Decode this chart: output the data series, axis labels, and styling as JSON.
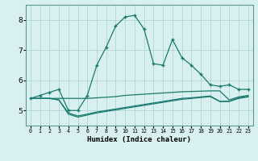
{
  "xlabel": "Humidex (Indice chaleur)",
  "x_values": [
    0,
    1,
    2,
    3,
    4,
    5,
    6,
    7,
    8,
    9,
    10,
    11,
    12,
    13,
    14,
    15,
    16,
    17,
    18,
    19,
    20,
    21,
    22,
    23
  ],
  "line1": [
    5.4,
    5.5,
    5.6,
    5.7,
    5.0,
    5.0,
    5.5,
    6.5,
    7.1,
    7.8,
    8.1,
    8.15,
    7.7,
    6.55,
    6.5,
    7.35,
    6.75,
    6.5,
    6.2,
    5.85,
    5.8,
    5.85,
    5.7,
    5.7
  ],
  "line2": [
    5.4,
    5.4,
    5.4,
    5.4,
    5.4,
    5.4,
    5.4,
    5.42,
    5.44,
    5.46,
    5.5,
    5.52,
    5.54,
    5.56,
    5.58,
    5.6,
    5.62,
    5.63,
    5.64,
    5.65,
    5.65,
    5.35,
    5.45,
    5.5
  ],
  "line3": [
    5.4,
    5.4,
    5.4,
    5.35,
    4.92,
    4.82,
    4.88,
    4.95,
    5.0,
    5.05,
    5.1,
    5.15,
    5.2,
    5.25,
    5.3,
    5.35,
    5.4,
    5.42,
    5.45,
    5.48,
    5.3,
    5.3,
    5.4,
    5.45
  ],
  "line4": [
    5.4,
    5.4,
    5.4,
    5.35,
    4.88,
    4.78,
    4.85,
    4.92,
    4.97,
    5.02,
    5.07,
    5.12,
    5.17,
    5.22,
    5.27,
    5.32,
    5.37,
    5.4,
    5.43,
    5.46,
    5.3,
    5.3,
    5.42,
    5.47
  ],
  "line_color": "#1a7a6e",
  "bg_color": "#d8f0ef",
  "grid_color": "#afd6d3",
  "ylim": [
    4.5,
    8.5
  ],
  "yticks": [
    5,
    6,
    7,
    8
  ],
  "xlim": [
    -0.5,
    23.5
  ]
}
